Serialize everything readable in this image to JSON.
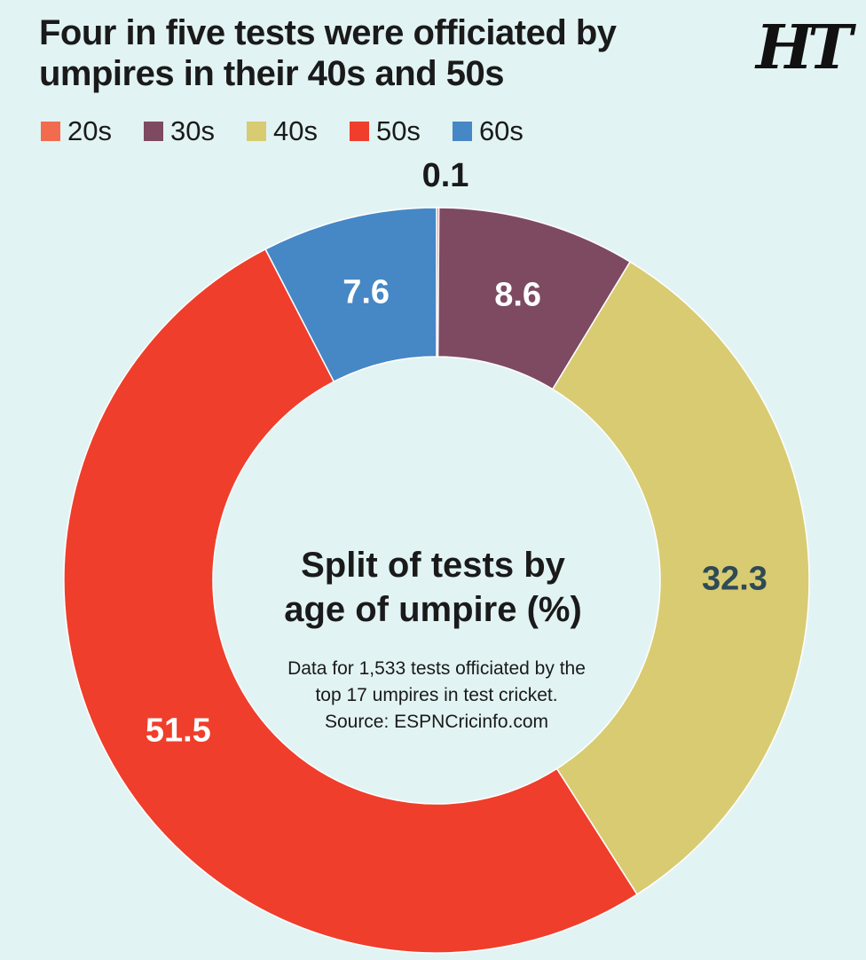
{
  "chart_data": {
    "type": "pie",
    "title": "Four in five tests were officiated by umpires in their 40s and 50s",
    "center_title_line1": "Split of tests by",
    "center_title_line2": "age of umpire (%)",
    "note_line1": "Data for 1,533 tests officiated by the",
    "note_line2": "top 17 umpires in test cricket.",
    "source": "Source: ESPNCricinfo.com",
    "legend_placement": "top-left",
    "slices": [
      {
        "label": "20s",
        "value": 0.1,
        "display": "0.1",
        "color": "#f26b4f",
        "label_color": "#1a1a1a"
      },
      {
        "label": "30s",
        "value": 8.6,
        "display": "8.6",
        "color": "#7d4a62",
        "label_color": "#ffffff"
      },
      {
        "label": "40s",
        "value": 32.3,
        "display": "32.3",
        "color": "#d8cb72",
        "label_color": "#2f4a55"
      },
      {
        "label": "50s",
        "value": 51.5,
        "display": "51.5",
        "color": "#ef3e2b",
        "label_color": "#ffffff"
      },
      {
        "label": "60s",
        "value": 7.6,
        "display": "7.6",
        "color": "#4687c6",
        "label_color": "#ffffff"
      }
    ]
  },
  "brand": {
    "logo_text": "HT"
  }
}
